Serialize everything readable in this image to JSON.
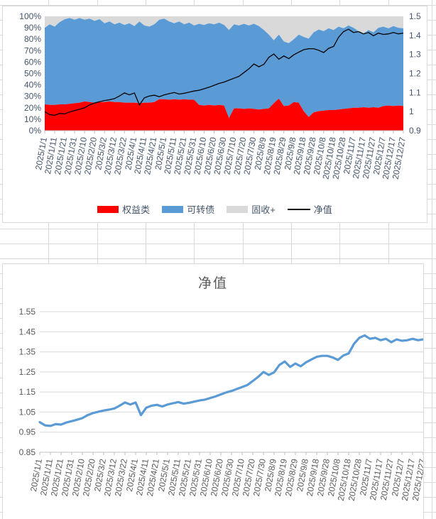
{
  "colors": {
    "equity": "#FF0000",
    "convertible": "#5B9BD5",
    "fixed_income": "#D9D9D9",
    "nav_line_top_chart": "#000000",
    "nav_line_bottom_chart": "#5B9BD5",
    "plot_gridline": "#D9D9D9",
    "axis_line": "#BFBFBF",
    "top_chart_text": "#44546A",
    "bottom_chart_text": "#595959",
    "sheet_gridline": "#D8D8D8"
  },
  "chart_data": [
    {
      "type": "area",
      "subtype": "100%-stacked-area-with-secondary-line",
      "title": "",
      "start_date": "2025/1/1",
      "end_date": "2025/12/27",
      "sample_interval_days": 5,
      "x_tick_labels": [
        "2025/1/1",
        "2025/1/11",
        "2025/1/21",
        "2025/1/31",
        "2025/2/10",
        "2025/2/20",
        "2025/3/2",
        "2025/3/12",
        "2025/3/22",
        "2025/4/1",
        "2025/4/11",
        "2025/4/21",
        "2025/5/1",
        "2025/5/11",
        "2025/5/21",
        "2025/5/31",
        "2025/6/10",
        "2025/6/20",
        "2025/6/30",
        "2025/7/10",
        "2025/7/20",
        "2025/7/30",
        "2025/8/9",
        "2025/8/19",
        "2025/8/29",
        "2025/9/8",
        "2025/9/18",
        "2025/9/28",
        "2025/10/8",
        "2025/10/18",
        "2025/10/28",
        "2025/11/7",
        "2025/11/17",
        "2025/11/27",
        "2025/12/7",
        "2025/12/17",
        "2025/12/27"
      ],
      "left_axis": {
        "min": 0,
        "max": 100,
        "ticks": [
          "0%",
          "10%",
          "20%",
          "30%",
          "40%",
          "50%",
          "60%",
          "70%",
          "80%",
          "90%",
          "100%"
        ]
      },
      "right_axis": {
        "min": 0.9,
        "max": 1.5,
        "ticks": [
          "0.9",
          "1",
          "1.1",
          "1.2",
          "1.3",
          "1.4",
          "1.5"
        ]
      },
      "legend": [
        {
          "label": "权益类",
          "color": "#FF0000",
          "marker": "rect"
        },
        {
          "label": "可转债",
          "color": "#5B9BD5",
          "marker": "rect"
        },
        {
          "label": "固收+",
          "color": "#D9D9D9",
          "marker": "rect"
        },
        {
          "label": "净值",
          "color": "#000000",
          "marker": "line"
        }
      ],
      "series": [
        {
          "name": "权益类",
          "axis": "left",
          "kind": "area",
          "color": "#FF0000",
          "values": [
            23,
            22.5,
            22.5,
            23,
            23,
            23.5,
            24,
            24.5,
            25.5,
            25,
            24.5,
            25,
            25,
            25.5,
            25,
            25,
            24.5,
            24.5,
            24.5,
            24,
            24.5,
            24.5,
            25,
            27.5,
            27.5,
            27,
            27.5,
            27,
            27.5,
            27,
            27,
            22.5,
            22,
            22.5,
            22,
            22.5,
            22,
            11,
            19.5,
            19.5,
            19,
            19.5,
            19,
            18.5,
            19,
            19.5,
            24,
            28,
            21.5,
            22,
            25,
            24.5,
            17,
            12,
            16,
            17,
            17.5,
            18,
            18,
            18.5,
            19,
            19.5,
            20,
            20,
            20.5,
            20,
            20.5,
            20,
            21.5,
            22,
            21.5,
            22,
            21.5
          ]
        },
        {
          "name": "可转债",
          "axis": "left",
          "kind": "area",
          "color": "#5B9BD5",
          "values": [
            67,
            70.5,
            68.5,
            72,
            74.5,
            75,
            73,
            74,
            71.5,
            73,
            71.5,
            72.5,
            69,
            70,
            68,
            69.5,
            68,
            69.5,
            67,
            71.5,
            67.5,
            66.5,
            68,
            69.5,
            70.5,
            68.5,
            66.5,
            68.5,
            65.5,
            67.5,
            65,
            71,
            70.5,
            71.5,
            71,
            72,
            70.5,
            77,
            73.5,
            72.5,
            74.5,
            72.5,
            74.5,
            73,
            69,
            64.5,
            55,
            56,
            56.5,
            54.5,
            55,
            59.5,
            65,
            68.5,
            70,
            71.5,
            69.5,
            71.5,
            70,
            72.5,
            70.5,
            72.5,
            70,
            67,
            64.5,
            68,
            65.5,
            70,
            69.5,
            67.5,
            70,
            68,
            68
          ]
        },
        {
          "name": "固收+",
          "axis": "left",
          "kind": "area",
          "color": "#D9D9D9",
          "values": [
            10,
            7,
            9,
            5,
            2.5,
            1.5,
            3,
            1.5,
            3,
            2,
            4,
            2.5,
            6,
            4.5,
            7,
            5.5,
            7.5,
            6,
            8.5,
            4.5,
            8,
            9,
            7,
            3,
            2,
            4.5,
            6,
            4.5,
            7,
            5.5,
            8,
            6.5,
            7.5,
            6,
            7,
            5.5,
            7.5,
            12,
            7,
            8,
            6.5,
            8,
            6.5,
            8.5,
            12,
            16,
            21,
            16,
            22,
            23.5,
            20,
            16,
            18,
            19.5,
            14,
            11.5,
            13,
            10.5,
            12,
            9,
            10.5,
            8,
            10,
            13,
            15,
            12,
            14,
            10,
            9,
            10.5,
            8.5,
            10,
            10.5
          ]
        },
        {
          "name": "净值",
          "axis": "right",
          "kind": "line",
          "color": "#000000",
          "values": [
            1.0,
            0.984,
            0.981,
            0.99,
            0.988,
            0.998,
            1.005,
            1.012,
            1.02,
            1.035,
            1.045,
            1.052,
            1.058,
            1.062,
            1.068,
            1.082,
            1.098,
            1.088,
            1.098,
            1.035,
            1.072,
            1.082,
            1.086,
            1.078,
            1.088,
            1.094,
            1.1,
            1.092,
            1.096,
            1.102,
            1.108,
            1.112,
            1.12,
            1.128,
            1.138,
            1.148,
            1.155,
            1.165,
            1.175,
            1.185,
            1.205,
            1.225,
            1.25,
            1.235,
            1.248,
            1.285,
            1.302,
            1.275,
            1.292,
            1.278,
            1.298,
            1.312,
            1.325,
            1.33,
            1.33,
            1.322,
            1.31,
            1.332,
            1.342,
            1.39,
            1.42,
            1.432,
            1.415,
            1.42,
            1.408,
            1.415,
            1.398,
            1.412,
            1.405,
            1.408,
            1.415,
            1.408,
            1.412
          ]
        }
      ]
    },
    {
      "type": "line",
      "title": "净值",
      "start_date": "2025/1/1",
      "end_date": "2025/12/27",
      "sample_interval_days": 5,
      "x_tick_labels": [
        "2025/1/1",
        "2025/1/11",
        "2025/1/21",
        "2025/1/31",
        "2025/2/10",
        "2025/2/20",
        "2025/3/2",
        "2025/3/12",
        "2025/3/22",
        "2025/4/1",
        "2025/4/11",
        "2025/4/21",
        "2025/5/1",
        "2025/5/11",
        "2025/5/21",
        "2025/5/31",
        "2025/6/10",
        "2025/6/20",
        "2025/6/30",
        "2025/7/10",
        "2025/7/20",
        "2025/7/30",
        "2025/8/9",
        "2025/8/19",
        "2025/8/29",
        "2025/9/8",
        "2025/9/18",
        "2025/9/28",
        "2025/10/8",
        "2025/10/18",
        "2025/10/28",
        "2025/11/7",
        "2025/11/17",
        "2025/11/27",
        "2025/12/7",
        "2025/12/17",
        "2025/12/27"
      ],
      "y_axis": {
        "min": 0.85,
        "max": 1.55,
        "ticks": [
          "0.85",
          "0.95",
          "1.05",
          "1.15",
          "1.25",
          "1.35",
          "1.45",
          "1.55"
        ]
      },
      "series": [
        {
          "name": "净值",
          "kind": "line",
          "color": "#5B9BD5",
          "values": [
            1.0,
            0.984,
            0.981,
            0.99,
            0.988,
            0.998,
            1.005,
            1.012,
            1.02,
            1.035,
            1.045,
            1.052,
            1.058,
            1.062,
            1.068,
            1.082,
            1.098,
            1.088,
            1.098,
            1.035,
            1.072,
            1.082,
            1.086,
            1.078,
            1.088,
            1.094,
            1.1,
            1.092,
            1.096,
            1.102,
            1.108,
            1.112,
            1.12,
            1.128,
            1.138,
            1.148,
            1.155,
            1.165,
            1.175,
            1.185,
            1.205,
            1.225,
            1.25,
            1.235,
            1.248,
            1.285,
            1.302,
            1.275,
            1.292,
            1.278,
            1.298,
            1.312,
            1.325,
            1.33,
            1.33,
            1.322,
            1.31,
            1.332,
            1.342,
            1.39,
            1.42,
            1.432,
            1.415,
            1.42,
            1.408,
            1.415,
            1.398,
            1.412,
            1.405,
            1.408,
            1.415,
            1.408,
            1.412
          ]
        }
      ]
    }
  ]
}
